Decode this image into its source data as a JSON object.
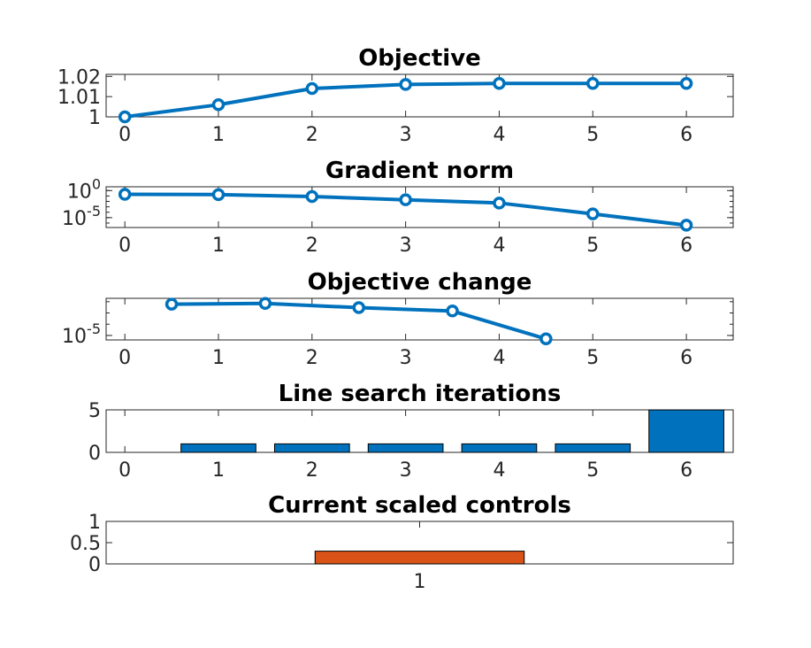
{
  "chart_data": [
    {
      "type": "line",
      "title": "Objective",
      "xlabel": "",
      "ylabel": "",
      "x": [
        0,
        1,
        2,
        3,
        4,
        5,
        6
      ],
      "series": [
        {
          "values": [
            1.0,
            1.006,
            1.014,
            1.016,
            1.0165,
            1.0165,
            1.0165
          ]
        }
      ],
      "xlim": [
        -0.2,
        6.5
      ],
      "ylim": [
        1.0,
        1.021
      ],
      "xticks": [
        0,
        1,
        2,
        3,
        4,
        5,
        6
      ],
      "xtick_labels": [
        "0",
        "1",
        "2",
        "3",
        "4",
        "5",
        "6"
      ],
      "yticks": [
        1.0,
        1.01,
        1.02
      ],
      "ytick_labels": [
        "1",
        "1.01",
        "1.02"
      ],
      "yscale": "linear",
      "marker": "circle",
      "color": "#0072BD",
      "grid": false
    },
    {
      "type": "line",
      "title": "Gradient norm",
      "xlabel": "",
      "ylabel": "",
      "x": [
        0,
        1,
        2,
        3,
        4,
        5,
        6
      ],
      "series": [
        {
          "values": [
            0.2,
            0.18,
            0.08,
            0.02,
            0.005,
            5e-05,
            4e-07
          ]
        }
      ],
      "xlim": [
        -0.2,
        6.5
      ],
      "ylim": [
        1.5e-07,
        5
      ],
      "xticks": [
        0,
        1,
        2,
        3,
        4,
        5,
        6
      ],
      "xtick_labels": [
        "0",
        "1",
        "2",
        "3",
        "4",
        "5",
        "6"
      ],
      "yticks": [
        1e-05,
        1
      ],
      "ytick_labels": [
        {
          "base": "10",
          "exp": "-5"
        },
        {
          "base": "10",
          "exp": "0"
        }
      ],
      "yscale": "log",
      "marker": "circle",
      "color": "#0072BD",
      "grid": false
    },
    {
      "type": "line",
      "title": "Objective change",
      "xlabel": "",
      "ylabel": "",
      "x": [
        0.5,
        1.5,
        2.5,
        3.5,
        4.5
      ],
      "series": [
        {
          "values": [
            0.006,
            0.007,
            0.003,
            0.0015,
            5e-06
          ]
        }
      ],
      "xlim": [
        -0.2,
        6.5
      ],
      "ylim": [
        4e-06,
        0.02
      ],
      "xticks": [
        0,
        1,
        2,
        3,
        4,
        5,
        6
      ],
      "xtick_labels": [
        "0",
        "1",
        "2",
        "3",
        "4",
        "5",
        "6"
      ],
      "yticks": [
        1e-05
      ],
      "ytick_labels": [
        {
          "base": "10",
          "exp": "-5"
        }
      ],
      "yscale": "log",
      "marker": "circle",
      "color": "#0072BD",
      "grid": false
    },
    {
      "type": "bar",
      "title": "Line search iterations",
      "xlabel": "",
      "ylabel": "",
      "categories": [
        0,
        1,
        2,
        3,
        4,
        5,
        6
      ],
      "values": [
        0,
        1,
        1,
        1,
        1,
        1,
        5
      ],
      "xlim": [
        -0.2,
        6.5
      ],
      "ylim": [
        0,
        5
      ],
      "xticks": [
        0,
        1,
        2,
        3,
        4,
        5,
        6
      ],
      "xtick_labels": [
        "0",
        "1",
        "2",
        "3",
        "4",
        "5",
        "6"
      ],
      "yticks": [
        0,
        5
      ],
      "ytick_labels": [
        "0",
        "5"
      ],
      "bar_width": 0.8,
      "color": "#0072BD",
      "grid": false
    },
    {
      "type": "bar",
      "title": "Current scaled controls",
      "xlabel": "",
      "ylabel": "",
      "categories": [
        1
      ],
      "values": [
        0.3
      ],
      "xlim": [
        0,
        2
      ],
      "ylim": [
        0,
        1
      ],
      "xticks": [
        1
      ],
      "xtick_labels": [
        "1"
      ],
      "yticks": [
        0,
        0.5,
        1
      ],
      "ytick_labels": [
        "0",
        "0.5",
        "1"
      ],
      "bar_width": 0.667,
      "color": "#D95319",
      "grid": false
    }
  ]
}
